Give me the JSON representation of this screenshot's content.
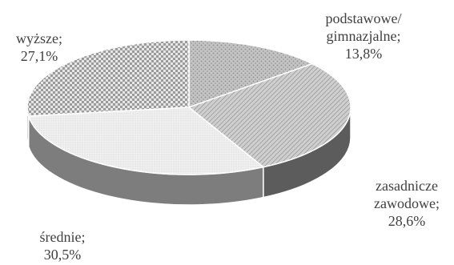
{
  "chart_data": {
    "type": "pie",
    "title": "",
    "style": "3d",
    "slices": [
      {
        "label_lines": [
          "podstawowe/",
          "gimnazjalne;"
        ],
        "value": 13.8,
        "value_text": "13,8%",
        "color": "#b5b5b5",
        "pattern": "dots"
      },
      {
        "label_lines": [
          "zasadnicze",
          "zawodowe;"
        ],
        "value": 28.6,
        "value_text": "28,6%",
        "color": "#9a9a9a",
        "pattern": "diagonal"
      },
      {
        "label_lines": [
          "średnie;"
        ],
        "value": 30.5,
        "value_text": "30,5%",
        "color": "#e2e2e2",
        "pattern": "fine"
      },
      {
        "label_lines": [
          "wyższe;"
        ],
        "value": 27.1,
        "value_text": "27,1%",
        "color": "#a0a0a0",
        "pattern": "checker"
      }
    ]
  }
}
